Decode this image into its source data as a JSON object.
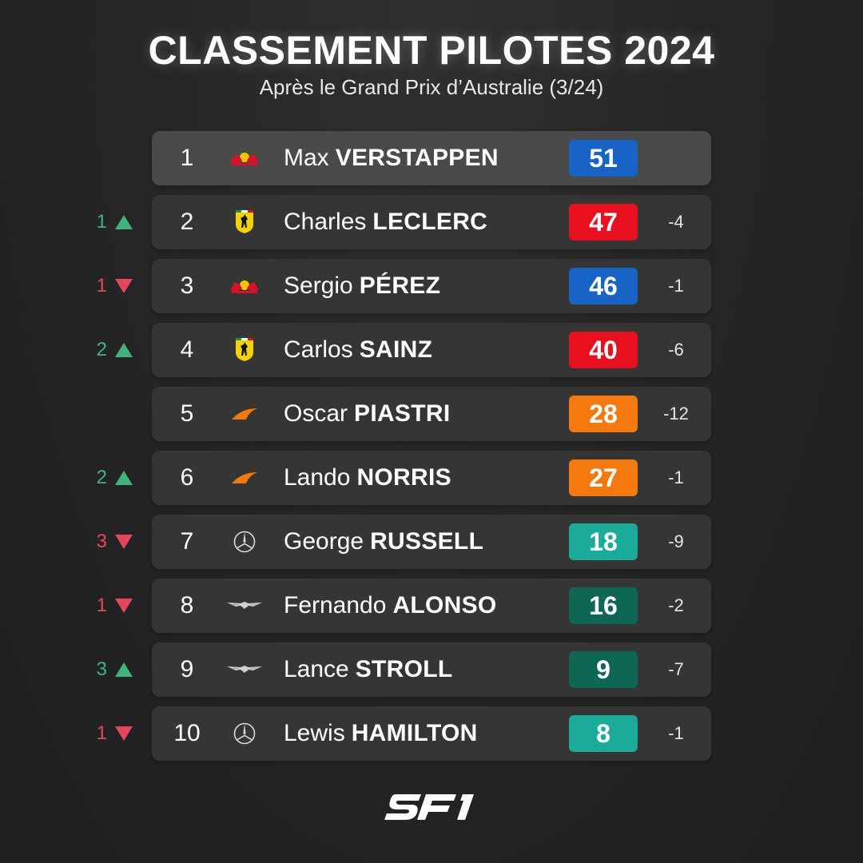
{
  "header": {
    "title": "CLASSEMENT PILOTES 2024",
    "subtitle": "Après le Grand Prix d’Australie (3/24)"
  },
  "colors": {
    "redbull": "#1763c6",
    "ferrari": "#e8101f",
    "mclaren": "#f47a10",
    "mercedes": "#1aab9a",
    "astonmartin": "#0e6655",
    "up": "#3fb37a",
    "down": "#e8455a"
  },
  "standings": [
    {
      "pos": "1",
      "change": "",
      "direction": "",
      "first": "Max",
      "last": "VERSTAPPEN",
      "team": "redbull",
      "team_icon": "red-bull-logo-icon",
      "points": "51",
      "gap": ""
    },
    {
      "pos": "2",
      "change": "1",
      "direction": "up",
      "first": "Charles",
      "last": "LECLERC",
      "team": "ferrari",
      "team_icon": "ferrari-logo-icon",
      "points": "47",
      "gap": "-4"
    },
    {
      "pos": "3",
      "change": "1",
      "direction": "down",
      "first": "Sergio",
      "last": "PÉREZ",
      "team": "redbull",
      "team_icon": "red-bull-logo-icon",
      "points": "46",
      "gap": "-1"
    },
    {
      "pos": "4",
      "change": "2",
      "direction": "up",
      "first": "Carlos",
      "last": "SAINZ",
      "team": "ferrari",
      "team_icon": "ferrari-logo-icon",
      "points": "40",
      "gap": "-6"
    },
    {
      "pos": "5",
      "change": "",
      "direction": "",
      "first": "Oscar",
      "last": "PIASTRI",
      "team": "mclaren",
      "team_icon": "mclaren-logo-icon",
      "points": "28",
      "gap": "-12"
    },
    {
      "pos": "6",
      "change": "2",
      "direction": "up",
      "first": "Lando",
      "last": "NORRIS",
      "team": "mclaren",
      "team_icon": "mclaren-logo-icon",
      "points": "27",
      "gap": "-1"
    },
    {
      "pos": "7",
      "change": "3",
      "direction": "down",
      "first": "George",
      "last": "RUSSELL",
      "team": "mercedes",
      "team_icon": "mercedes-logo-icon",
      "points": "18",
      "gap": "-9"
    },
    {
      "pos": "8",
      "change": "1",
      "direction": "down",
      "first": "Fernando",
      "last": "ALONSO",
      "team": "astonmartin",
      "team_icon": "aston-martin-logo-icon",
      "points": "16",
      "gap": "-2"
    },
    {
      "pos": "9",
      "change": "3",
      "direction": "up",
      "first": "Lance",
      "last": "STROLL",
      "team": "astonmartin",
      "team_icon": "aston-martin-logo-icon",
      "points": "9",
      "gap": "-7"
    },
    {
      "pos": "10",
      "change": "1",
      "direction": "down",
      "first": "Lewis",
      "last": "HAMILTON",
      "team": "mercedes",
      "team_icon": "mercedes-logo-icon",
      "points": "8",
      "gap": "-1"
    }
  ],
  "brand": {
    "logo_text": "SF1",
    "logo_icon": "sf1-logo-icon"
  }
}
